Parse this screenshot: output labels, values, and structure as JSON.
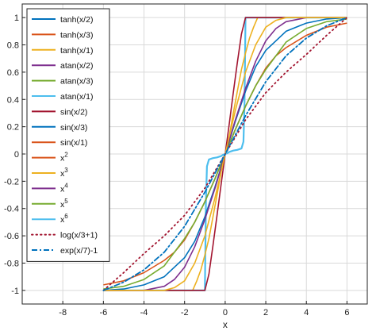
{
  "chart_data": {
    "type": "line",
    "xlabel": "x",
    "ylabel": "",
    "xlim": [
      -10,
      7
    ],
    "ylim": [
      -1.1,
      1.1
    ],
    "grid": true,
    "legend_position": "top-left",
    "x_ticks": [
      -8,
      -6,
      -4,
      -2,
      0,
      2,
      4,
      6
    ],
    "x_tick_labels": [
      "-8",
      "-6",
      "-4",
      "-2",
      "0",
      "2",
      "4",
      "6"
    ],
    "y_ticks": [
      -1,
      -0.8,
      -0.6,
      -0.4,
      -0.2,
      0,
      0.2,
      0.4,
      0.6,
      0.8,
      1
    ],
    "y_tick_labels": [
      "-1",
      "-0.8",
      "-0.6",
      "-0.4",
      "-0.2",
      "0",
      "0.2",
      "0.4",
      "0.6",
      "0.8",
      "1"
    ],
    "series": [
      {
        "name": "tanh(x/2)",
        "color": "#0072BD",
        "style": "solid"
      },
      {
        "name": "tanh(x/3)",
        "color": "#D95319",
        "style": "solid"
      },
      {
        "name": "tanh(x/1)",
        "color": "#EDB120",
        "style": "solid"
      },
      {
        "name": "atan(x/2)",
        "color": "#7E2F8E",
        "style": "solid"
      },
      {
        "name": "atan(x/3)",
        "color": "#77AC30",
        "style": "solid"
      },
      {
        "name": "atan(x/1)",
        "color": "#4DBEEE",
        "style": "solid"
      },
      {
        "name": "sin(x/2)",
        "color": "#A2142F",
        "style": "solid"
      },
      {
        "name": "sin(x/3)",
        "color": "#0072BD",
        "style": "solid"
      },
      {
        "name": "sin(x/1)",
        "color": "#D95319",
        "style": "solid"
      },
      {
        "name": "x",
        "sup": "2",
        "color": "#D95319",
        "style": "solid"
      },
      {
        "name": "x",
        "sup": "3",
        "color": "#EDB120",
        "style": "solid"
      },
      {
        "name": "x",
        "sup": "4",
        "color": "#7E2F8E",
        "style": "solid"
      },
      {
        "name": "x",
        "sup": "5",
        "color": "#77AC30",
        "style": "solid"
      },
      {
        "name": "x",
        "sup": "6",
        "color": "#4DBEEE",
        "style": "solid"
      },
      {
        "name": "log(x/3+1)",
        "color": "#A2142F",
        "style": "dotted"
      },
      {
        "name": "exp(x/7)-1",
        "color": "#0072BD",
        "style": "dashdot"
      }
    ],
    "curves": [
      {
        "color": "#4DBEEE",
        "width": 2.2,
        "dash": "",
        "x": [
          -6,
          -1,
          -0.95,
          -0.9,
          -0.8,
          -0.6,
          -0.4,
          -0.2,
          -0.1,
          0,
          0.1,
          0.2,
          0.4,
          0.6,
          0.8,
          0.9,
          0.95,
          1,
          6
        ],
        "y": [
          -1,
          -1,
          -0.35,
          -0.09,
          -0.04,
          -0.03,
          -0.025,
          -0.015,
          -0.005,
          0,
          0.005,
          0.015,
          0.025,
          0.03,
          0.04,
          0.09,
          0.35,
          1,
          1
        ]
      },
      {
        "color": "#EDB120",
        "width": 1.6,
        "dash": "",
        "x": [
          -6,
          -1.6,
          -1.4,
          -1.2,
          -1,
          -0.8,
          -0.6,
          -0.4,
          -0.2,
          0,
          0.2,
          0.4,
          0.6,
          0.8,
          1,
          1.2,
          1.4,
          1.6,
          6
        ],
        "y": [
          -1,
          -1,
          -0.93,
          -0.85,
          -0.74,
          -0.62,
          -0.46,
          -0.3,
          -0.13,
          0,
          0.13,
          0.3,
          0.46,
          0.62,
          0.74,
          0.85,
          0.93,
          1,
          1
        ]
      },
      {
        "color": "#A2142F",
        "width": 1.6,
        "dash": "",
        "x": [
          -6,
          -1,
          -0.8,
          -0.6,
          -0.4,
          -0.2,
          0,
          0.2,
          0.4,
          0.6,
          0.8,
          1,
          6
        ],
        "y": [
          -1,
          -1,
          -0.88,
          -0.67,
          -0.45,
          -0.22,
          0,
          0.22,
          0.45,
          0.67,
          0.88,
          1,
          1
        ]
      },
      {
        "color": "#D95319",
        "width": 1.6,
        "dash": "",
        "x": [
          -6,
          -5,
          -4,
          -3,
          -2.5,
          -2,
          -1.5,
          -1,
          -0.5,
          0,
          0.5,
          1,
          1.5,
          2,
          2.5,
          3,
          4,
          5,
          6
        ],
        "y": [
          -0.96,
          -0.93,
          -0.87,
          -0.78,
          -0.72,
          -0.63,
          -0.5,
          -0.35,
          -0.18,
          0,
          0.18,
          0.35,
          0.5,
          0.63,
          0.72,
          0.78,
          0.87,
          0.93,
          0.96
        ]
      },
      {
        "color": "#77AC30",
        "width": 1.6,
        "dash": "",
        "x": [
          -6,
          -5,
          -4,
          -3,
          -2,
          -1.5,
          -1,
          -0.5,
          0,
          0.5,
          1,
          1.5,
          2,
          3,
          4,
          5,
          6
        ],
        "y": [
          -0.99,
          -0.97,
          -0.92,
          -0.82,
          -0.62,
          -0.5,
          -0.35,
          -0.18,
          0,
          0.18,
          0.35,
          0.5,
          0.62,
          0.82,
          0.92,
          0.97,
          0.99
        ]
      },
      {
        "color": "#0072BD",
        "width": 1.6,
        "dash": "",
        "x": [
          -6,
          -5,
          -4,
          -3,
          -2,
          -1.5,
          -1,
          -0.5,
          0,
          0.5,
          1,
          1.5,
          2,
          3,
          4,
          5,
          6
        ],
        "y": [
          -1,
          -0.99,
          -0.96,
          -0.9,
          -0.76,
          -0.64,
          -0.46,
          -0.24,
          0,
          0.24,
          0.46,
          0.64,
          0.76,
          0.9,
          0.96,
          0.99,
          1
        ]
      },
      {
        "color": "#7E2F8E",
        "width": 1.6,
        "dash": "",
        "x": [
          -6,
          -4,
          -3,
          -2.5,
          -2,
          -1.5,
          -1,
          -0.5,
          0,
          0.5,
          1,
          1.5,
          2,
          2.5,
          3,
          4,
          6
        ],
        "y": [
          -1,
          -1,
          -0.97,
          -0.92,
          -0.83,
          -0.68,
          -0.48,
          -0.25,
          0,
          0.25,
          0.48,
          0.68,
          0.83,
          0.92,
          0.97,
          1,
          1
        ]
      },
      {
        "color": "#EDB120",
        "width": 1.6,
        "dash": "",
        "x": [
          -6,
          -3,
          -2.5,
          -2,
          -1.5,
          -1,
          -0.5,
          0,
          0.5,
          1,
          1.5,
          2,
          2.5,
          3,
          6
        ],
        "y": [
          -1,
          -1,
          -0.98,
          -0.93,
          -0.8,
          -0.6,
          -0.32,
          0,
          0.32,
          0.6,
          0.8,
          0.93,
          0.98,
          1,
          1
        ]
      },
      {
        "color": "#A2142F",
        "width": 1.8,
        "dash": "1.5,4",
        "x": [
          -6,
          -5,
          -4,
          -3,
          -2,
          -1,
          0,
          1,
          2,
          3,
          4,
          5,
          6
        ],
        "y": [
          -1,
          -0.87,
          -0.73,
          -0.6,
          -0.45,
          -0.25,
          0,
          0.25,
          0.45,
          0.6,
          0.73,
          0.87,
          1
        ]
      },
      {
        "color": "#0072BD",
        "width": 1.8,
        "dash": "7,3,2,3",
        "x": [
          -6,
          -5,
          -4,
          -3,
          -2,
          -1,
          0,
          1,
          2,
          3,
          4,
          5,
          6
        ],
        "y": [
          -1,
          -0.94,
          -0.85,
          -0.72,
          -0.53,
          -0.28,
          0,
          0.28,
          0.53,
          0.72,
          0.85,
          0.94,
          1
        ]
      }
    ]
  }
}
